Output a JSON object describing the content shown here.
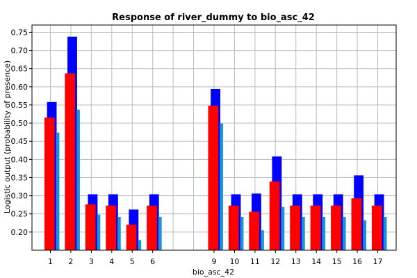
{
  "chart_data": {
    "type": "bar",
    "title": "Response of river_dummy to bio_asc_42",
    "xlabel": "bio_asc_42",
    "ylabel": "Logistic output (probability of presence)",
    "ylim": [
      0.15,
      0.77
    ],
    "yticks": [
      0.2,
      0.25,
      0.3,
      0.35,
      0.4,
      0.45,
      0.5,
      0.55,
      0.6,
      0.65,
      0.7,
      0.75
    ],
    "ytick_labels": [
      "0.20",
      "0.25",
      "0.30",
      "0.35",
      "0.40",
      "0.45",
      "0.50",
      "0.55",
      "0.60",
      "0.65",
      "0.70",
      "0.75"
    ],
    "x_range": [
      0.1,
      17.9
    ],
    "grid": true,
    "categories": [
      "1",
      "2",
      "3",
      "4",
      "5",
      "6",
      "9",
      "10",
      "11",
      "12",
      "13",
      "14",
      "15",
      "16",
      "17"
    ],
    "x": [
      1,
      2,
      3,
      4,
      5,
      6,
      9,
      10,
      11,
      12,
      13,
      14,
      15,
      16,
      17
    ],
    "series": [
      {
        "values": [
          0.558,
          0.738,
          0.304,
          0.304,
          0.262,
          0.304,
          0.594,
          0.304,
          0.306,
          0.408,
          0.304,
          0.304,
          0.304,
          0.356,
          0.304
        ]
      },
      {
        "values": [
          0.515,
          0.637,
          0.276,
          0.273,
          0.22,
          0.273,
          0.548,
          0.273,
          0.256,
          0.339,
          0.273,
          0.273,
          0.273,
          0.293,
          0.273
        ]
      },
      {
        "values": [
          0.474,
          0.537,
          0.248,
          0.242,
          0.178,
          0.242,
          0.499,
          0.242,
          0.205,
          0.269,
          0.242,
          0.242,
          0.242,
          0.232,
          0.242
        ]
      }
    ],
    "colors": [
      "#0000ff",
      "#ff0000",
      "#1e90d8"
    ]
  }
}
